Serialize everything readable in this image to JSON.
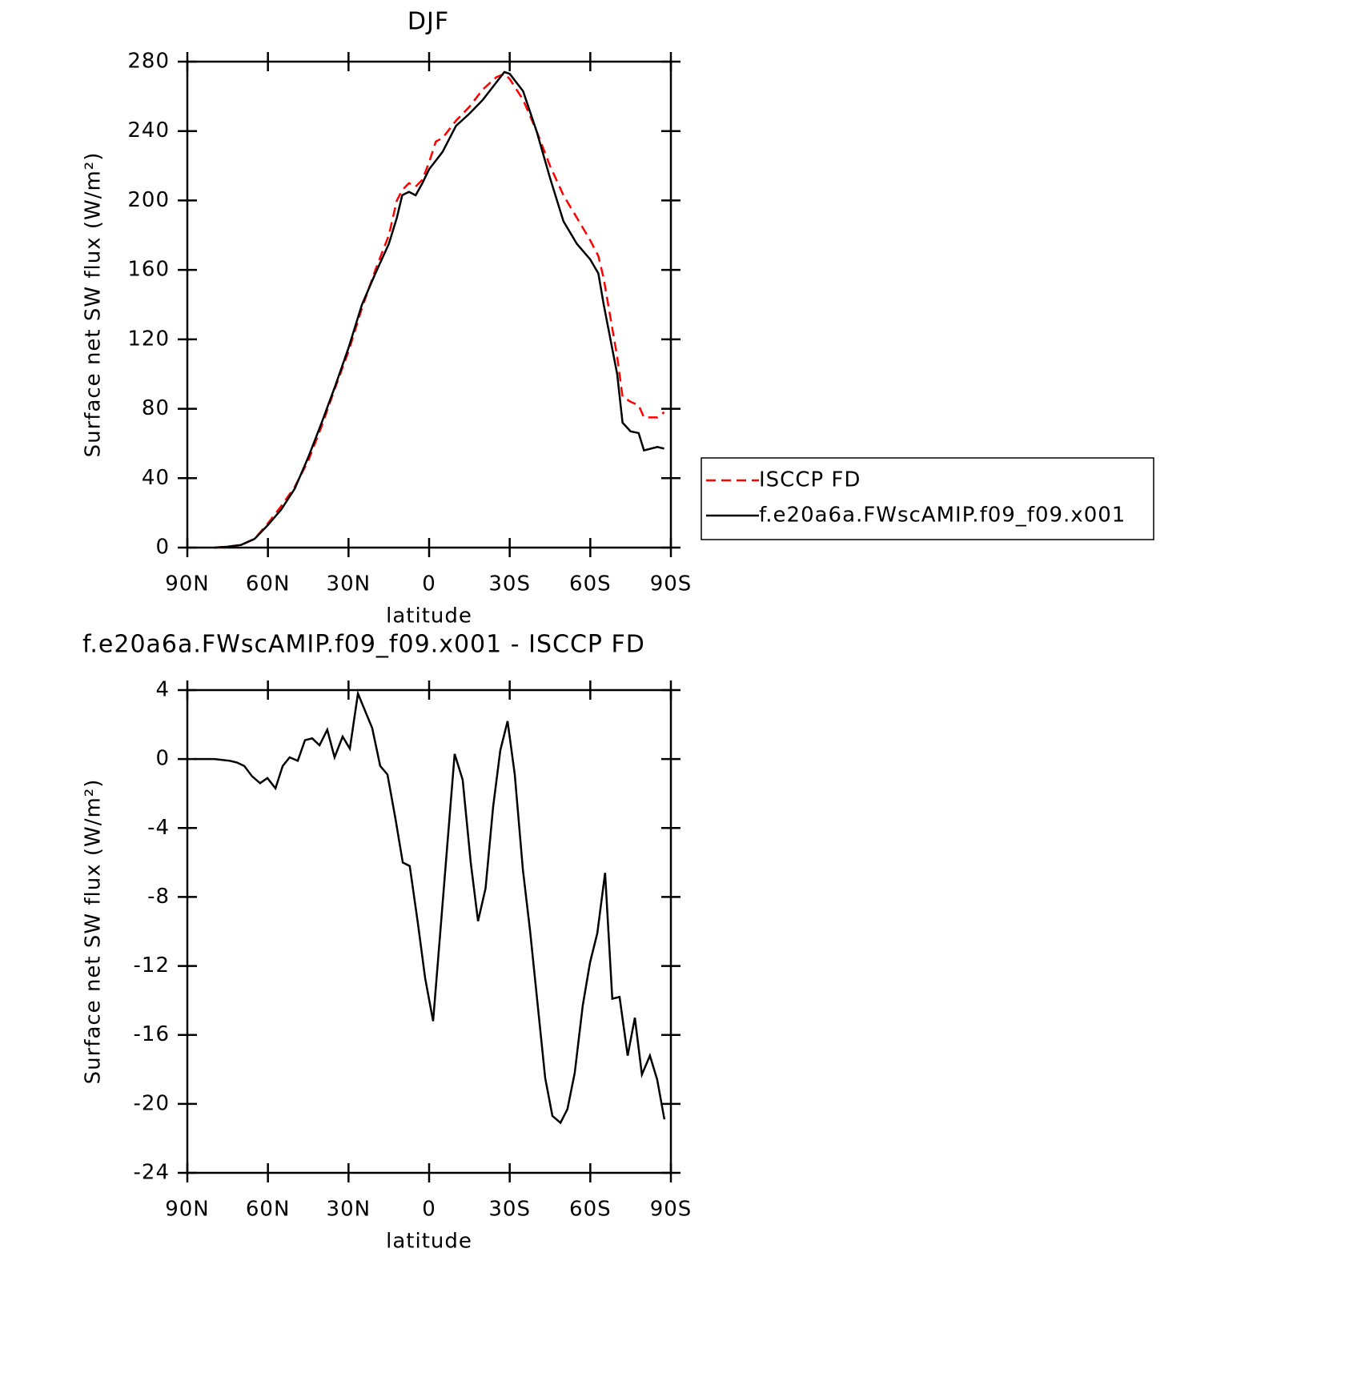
{
  "chart_data": [
    {
      "type": "line",
      "title": "DJF",
      "xlabel": "latitude",
      "ylabel": "Surface net SW flux (W/m²)",
      "x": [
        80,
        75,
        70,
        65,
        60,
        55,
        50,
        45,
        40,
        35,
        30,
        25,
        20,
        15,
        12,
        10,
        7.5,
        5,
        2.5,
        0,
        -2.5,
        -5,
        -10,
        -15,
        -20,
        -25,
        -28,
        -30,
        -35,
        -40,
        -45,
        -50,
        -55,
        -60,
        -63,
        -65,
        -70,
        -72,
        -75,
        -78,
        -80,
        -85,
        -87.5
      ],
      "series": [
        {
          "name": "ISCCP FD",
          "color": "#ff0000",
          "linestyle": "dashed",
          "values": [
            0,
            0.5,
            1.5,
            5,
            14,
            24,
            35,
            50,
            70,
            92,
            113,
            138,
            160,
            180,
            200,
            206,
            210,
            208,
            212,
            222,
            234,
            236,
            246,
            254,
            264,
            271,
            273,
            270,
            258,
            240,
            220,
            203,
            190,
            177,
            168,
            155,
            110,
            87,
            84,
            82,
            75,
            75,
            78
          ]
        },
        {
          "name": "f.e20a6a.FWscAMIP.f09_f09.x001",
          "color": "#000000",
          "linestyle": "solid",
          "values": [
            0,
            0.5,
            1.5,
            5,
            13,
            22,
            34,
            52,
            72,
            93,
            115,
            140,
            158,
            175,
            190,
            203,
            205,
            203,
            210,
            218,
            223,
            228,
            243,
            250,
            258,
            268,
            274,
            273,
            263,
            240,
            213,
            188,
            175,
            166,
            158,
            140,
            100,
            72,
            67,
            66,
            56,
            58,
            57
          ]
        }
      ],
      "xlim": [
        90,
        -90
      ],
      "xticks": [
        {
          "value": 90,
          "label": "90N"
        },
        {
          "value": 60,
          "label": "60N"
        },
        {
          "value": 30,
          "label": "30N"
        },
        0,
        {
          "value": -30,
          "label": "30S"
        },
        {
          "value": -60,
          "label": "60S"
        },
        {
          "value": -90,
          "label": "90S"
        }
      ],
      "ylim": [
        0,
        280
      ],
      "yticks": [
        0,
        40,
        80,
        120,
        160,
        200,
        240,
        280
      ],
      "legend": "right"
    },
    {
      "type": "line",
      "title": "f.e20a6a.FWscAMIP.f09_f09.x001 - ISCCP FD",
      "xlabel": "latitude",
      "ylabel": "Surface net SW flux (W/m²)",
      "x": [
        87.6,
        79.9,
        74.2,
        71.5,
        68.8,
        65.9,
        62.9,
        60.2,
        57.2,
        54.5,
        51.9,
        48.9,
        46.2,
        43.5,
        40.8,
        37.9,
        35.2,
        32.2,
        29.5,
        26.5,
        21.2,
        18.2,
        15.5,
        12.5,
        9.8,
        7.2,
        4.2,
        1.5,
        -1.5,
        -9.5,
        -12.5,
        -15.5,
        -18.2,
        -21,
        -23.8,
        -26.5,
        -29.2,
        -31.9,
        -34.9,
        -37.6,
        -43.2,
        -45.9,
        -48.9,
        -51.5,
        -54.2,
        -57.2,
        -59.9,
        -62.6,
        -65.5,
        -68.2,
        -70.9,
        -73.9,
        -76.6,
        -79.2,
        -82.2,
        -84.9,
        -87.6
      ],
      "series": [
        {
          "color": "#000000",
          "linestyle": "solid",
          "values": [
            0,
            0,
            -0.1,
            -0.2,
            -0.4,
            -1.0,
            -1.4,
            -1.1,
            -1.7,
            -0.4,
            0.1,
            -0.1,
            1.1,
            1.2,
            0.8,
            1.7,
            0.1,
            1.3,
            0.6,
            3.8,
            1.8,
            -0.4,
            -0.9,
            -3.5,
            -6,
            -6.2,
            -9.5,
            -12.7,
            -15.2,
            0.3,
            -1.2,
            -6,
            -9.4,
            -7.5,
            -2.8,
            0.5,
            2.2,
            -0.9,
            -6.4,
            -10,
            -18.5,
            -20.7,
            -21.1,
            -20.3,
            -18.2,
            -14.3,
            -11.8,
            -10.1,
            -6.6,
            -13.9,
            -13.8,
            -17.2,
            -15,
            -18.3,
            -17.2,
            -18.6,
            -20.9
          ]
        }
      ],
      "xlim": [
        90,
        -90
      ],
      "xticks": [
        {
          "value": 90,
          "label": "90N"
        },
        {
          "value": 60,
          "label": "60N"
        },
        {
          "value": 30,
          "label": "30N"
        },
        0,
        {
          "value": -30,
          "label": "30S"
        },
        {
          "value": -60,
          "label": "60S"
        },
        {
          "value": -90,
          "label": "90S"
        }
      ],
      "ylim": [
        -24,
        4
      ],
      "yticks": [
        -24,
        -20,
        -16,
        -12,
        -8,
        -4,
        0,
        4
      ]
    }
  ]
}
